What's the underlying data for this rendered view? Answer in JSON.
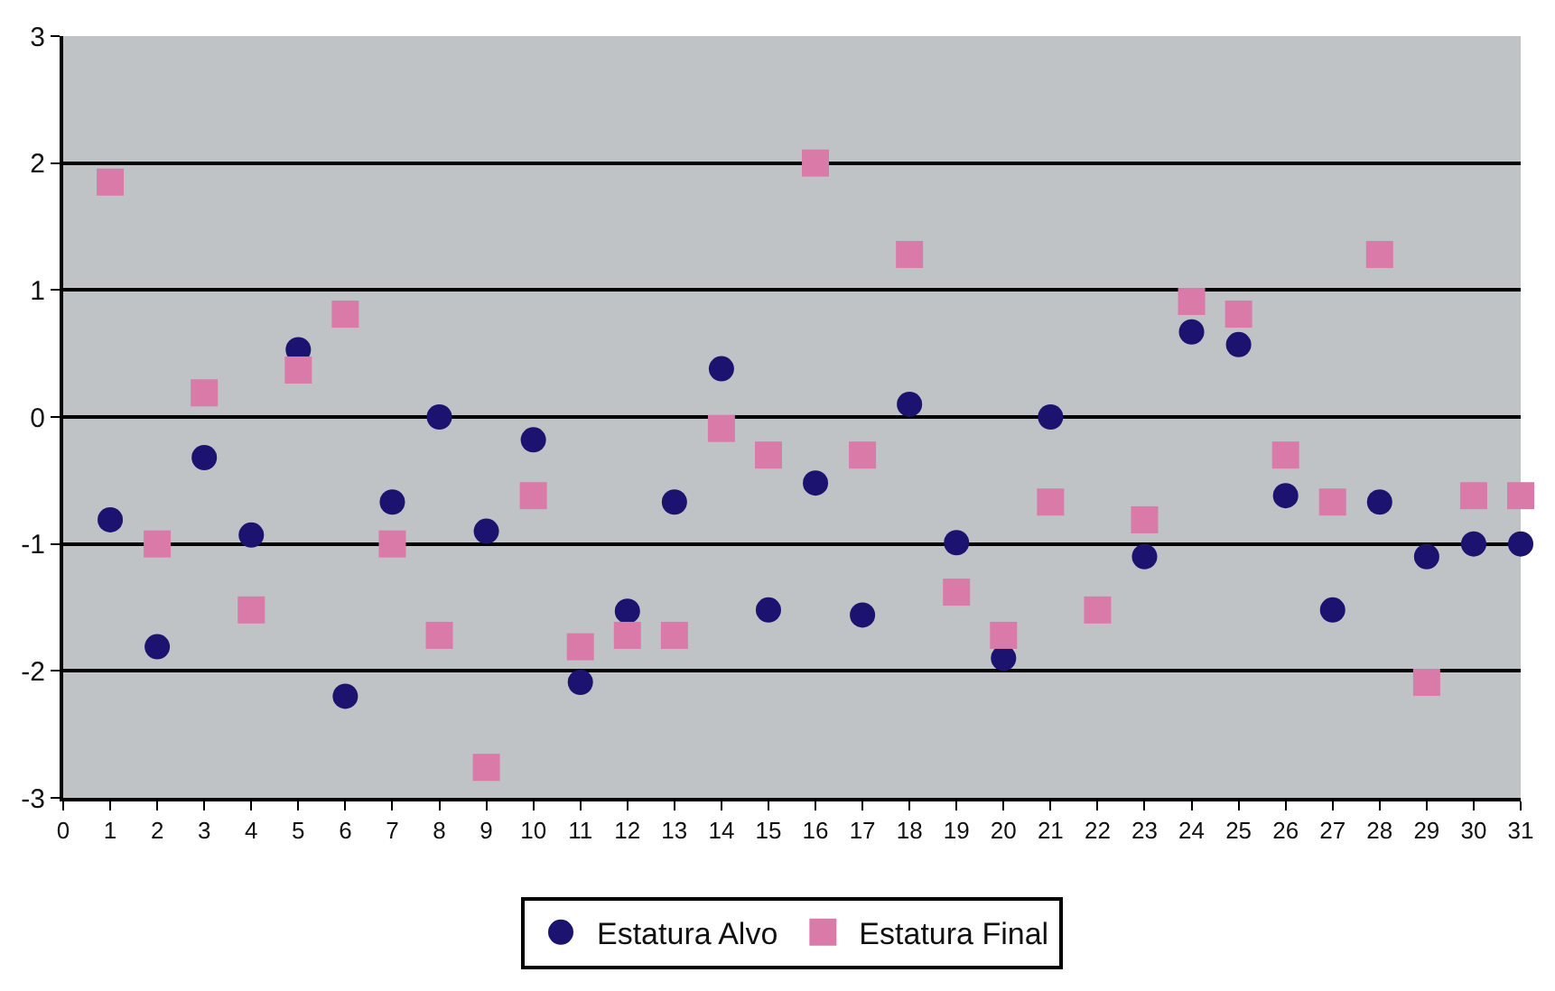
{
  "chart_data": {
    "type": "scatter",
    "x": [
      1,
      2,
      3,
      4,
      5,
      6,
      7,
      8,
      9,
      10,
      11,
      12,
      13,
      14,
      15,
      16,
      17,
      18,
      19,
      20,
      21,
      22,
      23,
      24,
      25,
      26,
      27,
      28,
      29,
      30,
      31
    ],
    "series": [
      {
        "name": "Estatura Alvo",
        "color": "#1c1370",
        "marker": "circle",
        "values": [
          -0.81,
          -1.81,
          -0.32,
          -0.93,
          0.53,
          -2.2,
          -0.67,
          0,
          -0.9,
          -0.18,
          -2.09,
          -1.53,
          -0.67,
          0.38,
          -1.52,
          -0.52,
          -1.56,
          0.1,
          -0.99,
          -1.9,
          0,
          null,
          -1.1,
          0.67,
          0.57,
          -0.62,
          -1.52,
          -0.67,
          -1.1,
          -1.0,
          -1.0
        ]
      },
      {
        "name": "Estatura Final",
        "color": "#d97aa8",
        "marker": "square",
        "values": [
          1.85,
          -1.0,
          0.19,
          -1.52,
          0.37,
          0.81,
          -1.0,
          -1.72,
          -2.76,
          -0.62,
          -1.81,
          -1.72,
          -1.72,
          -0.09,
          -0.3,
          2.0,
          -0.3,
          1.28,
          -1.38,
          -1.72,
          -0.67,
          -1.52,
          -0.81,
          0.91,
          0.81,
          -0.3,
          -0.67,
          1.28,
          -2.09,
          -0.62,
          -0.62
        ]
      }
    ],
    "xlim": [
      0,
      31
    ],
    "xticks": [
      0,
      1,
      2,
      3,
      4,
      5,
      6,
      7,
      8,
      9,
      10,
      11,
      12,
      13,
      14,
      15,
      16,
      17,
      18,
      19,
      20,
      21,
      22,
      23,
      24,
      25,
      26,
      27,
      28,
      29,
      30,
      31
    ],
    "ylim": [
      -3,
      3
    ],
    "yticks": [
      -3,
      -2,
      -1,
      0,
      1,
      2,
      3
    ],
    "grid": "y",
    "legend": "bottom"
  }
}
